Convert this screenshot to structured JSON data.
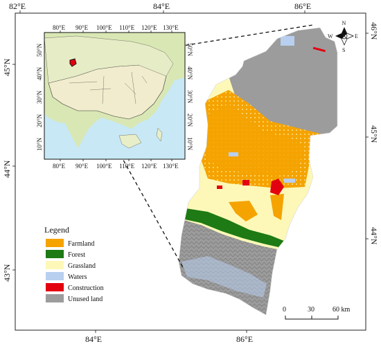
{
  "map": {
    "longitude_labels_top": [
      "82°E",
      "84°E",
      "86°E"
    ],
    "longitude_labels_bottom": [
      "84°E",
      "86°E"
    ],
    "latitude_labels_left": [
      "45°N",
      "44°N",
      "43°N"
    ],
    "latitude_labels_right": [
      "46°N",
      "45°N",
      "44°N"
    ]
  },
  "inset": {
    "top_ticks": [
      "80°E",
      "90°E",
      "100°E",
      "110°E",
      "120°E",
      "130°E"
    ],
    "bottom_ticks": [
      "80°E",
      "90°E",
      "100°E",
      "110°E",
      "120°E",
      "130°E"
    ],
    "left_ticks": [
      "50°N",
      "40°N",
      "30°N",
      "20°N",
      "10°N"
    ],
    "right_ticks": [
      "50°N",
      "40°N",
      "30°N",
      "20°N",
      "10°N"
    ]
  },
  "compass": {
    "n": "N",
    "s": "S",
    "e": "E",
    "w": "W"
  },
  "legend": {
    "title": "Legend",
    "items": [
      {
        "label": "Farmland",
        "color": "#f5a300"
      },
      {
        "label": "Forest",
        "color": "#1e7a14"
      },
      {
        "label": "Grassland",
        "color": "#fdf8b8"
      },
      {
        "label": "Waters",
        "color": "#b8cff0"
      },
      {
        "label": "Construction",
        "color": "#e3000f"
      },
      {
        "label": "Unused land",
        "color": "#9c9c9c"
      }
    ]
  },
  "scalebar": {
    "ticks": [
      "0",
      "30",
      "60 km"
    ]
  }
}
